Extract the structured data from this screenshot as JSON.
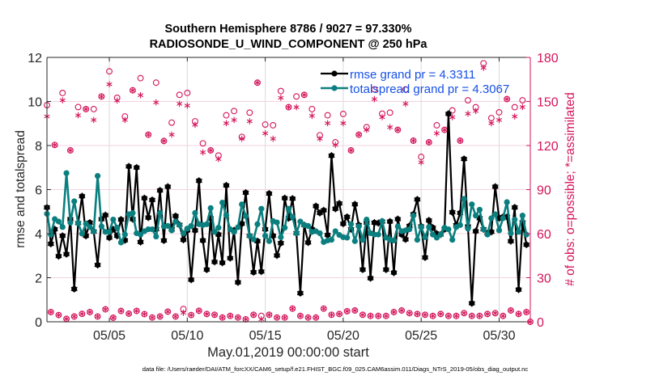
{
  "chart_data": {
    "type": "line",
    "title": "Southern Hemisphere 8786 / 9027 = 97.330%",
    "subtitle": "RADIOSONDE_U_WIND_COMPONENT @ 250 hPa",
    "xlabel": "May.01,2019 00:00:00 start",
    "ylabel": "rmse and totalspread",
    "y2label": "# of obs: o=possible; *=assimilated",
    "x_unit": "days since May.01,2019 00:00:00",
    "x_step_days": 0.25,
    "xlim": [
      0,
      31
    ],
    "ylim": [
      0,
      12
    ],
    "y2lim": [
      0,
      180
    ],
    "grid": true,
    "xticks": [
      {
        "value": 4,
        "label": "05/05"
      },
      {
        "value": 9,
        "label": "05/10"
      },
      {
        "value": 14,
        "label": "05/15"
      },
      {
        "value": 19,
        "label": "05/20"
      },
      {
        "value": 24,
        "label": "05/25"
      },
      {
        "value": 29,
        "label": "05/30"
      }
    ],
    "yticks": [
      0,
      2,
      4,
      6,
      8,
      10,
      12
    ],
    "y2ticks": [
      0,
      30,
      60,
      90,
      120,
      150,
      180
    ],
    "legend": {
      "placement": "top-center",
      "entries": [
        {
          "series": "rmse",
          "label": "rmse grand pr = 4.3311"
        },
        {
          "series": "totalspread",
          "label": "totalspread grand pr = 4.3067"
        }
      ]
    },
    "series": [
      {
        "name": "rmse",
        "axis": "left",
        "color": "#000000",
        "marker": "filled-star",
        "values": [
          5.19,
          3.54,
          4.2,
          2.98,
          3.9,
          3.07,
          4.66,
          1.49,
          4.48,
          5.7,
          3.9,
          4.5,
          4.1,
          2.58,
          4.66,
          4.84,
          3.82,
          4.2,
          3.9,
          4.64,
          3.7,
          7.05,
          4.66,
          7.0,
          3.62,
          5.61,
          4.73,
          5.53,
          4.2,
          5.96,
          3.69,
          6.13,
          4.2,
          4.8,
          4.4,
          3.72,
          4.15,
          1.91,
          4.15,
          6.4,
          3.69,
          2.37,
          4.7,
          2.72,
          3.96,
          2.68,
          6.19,
          2.89,
          4.15,
          1.79,
          4.45,
          5.86,
          3.9,
          2.25,
          3.66,
          2.28,
          4.2,
          5.82,
          3.9,
          3.01,
          3.57,
          5.61,
          4.7,
          5.59,
          4.02,
          1.3,
          4.39,
          3.6,
          4.2,
          5.25,
          4.94,
          5.06,
          3.94,
          7.54,
          5.13,
          5.37,
          4.45,
          4.76,
          4.2,
          5.33,
          4.39,
          2.37,
          4.5,
          1.98,
          4.5,
          4.48,
          4.55,
          2.37,
          4.55,
          2.23,
          4.66,
          3.96,
          3.74,
          4.35,
          4.88,
          5.55,
          4.33,
          2.92,
          4.6,
          4.27,
          4.0,
          3.96,
          4.2,
          9.44,
          4.97,
          4.39,
          4.94,
          7.39,
          4.33,
          0.84,
          4.11,
          4.7,
          4.2,
          4.02,
          4.08,
          6.13,
          4.7,
          4.76,
          4.76,
          3.66,
          5.19,
          1.46,
          4.51,
          3.5,
          null
        ]
      },
      {
        "name": "totalspread",
        "axis": "left",
        "color": "#0b7f7f",
        "marker": "filled-circle",
        "values": [
          4.9,
          3.96,
          4.66,
          4.55,
          4.3,
          6.75,
          4.5,
          5.47,
          4.48,
          4.0,
          4.45,
          4.3,
          4.1,
          6.62,
          4.33,
          4.08,
          4.08,
          4.64,
          4.27,
          3.6,
          3.96,
          4.88,
          4.94,
          4.02,
          3.96,
          4.11,
          4.2,
          4.2,
          3.87,
          4.94,
          4.33,
          4.35,
          4.15,
          4.55,
          4.39,
          4.02,
          4.23,
          4.35,
          4.94,
          4.43,
          4.39,
          4.43,
          5.16,
          4.08,
          4.27,
          5.41,
          4.84,
          4.2,
          4.08,
          4.29,
          5.33,
          4.8,
          3.9,
          3.74,
          4.43,
          5.13,
          3.9,
          3.66,
          4.57,
          4.51,
          3.84,
          4.27,
          5.13,
          4.76,
          4.02,
          4.55,
          4.39,
          4.35,
          4.08,
          4.11,
          4.02,
          3.62,
          3.69,
          3.72,
          4.11,
          3.94,
          3.84,
          3.82,
          4.43,
          3.66,
          4.33,
          3.72,
          4.64,
          4.02,
          3.96,
          3.96,
          4.57,
          3.82,
          3.72,
          3.69,
          4.33,
          4.11,
          4.15,
          4.2,
          4.82,
          3.72,
          4.3,
          3.84,
          4.3,
          3.96,
          3.82,
          3.96,
          4.27,
          4.2,
          3.72,
          4.3,
          4.39,
          5.58,
          4.23,
          5.33,
          4.82,
          5.09,
          4.2,
          3.96,
          4.7,
          4.88,
          4.15,
          4.7,
          5.43,
          4.02,
          4.64,
          4.08,
          4.82,
          3.96,
          null
        ]
      },
      {
        "name": "obs possible",
        "axis": "right",
        "color": "#d4145a",
        "marker": "o",
        "values": [
          147.5,
          6.6,
          120.4,
          4.6,
          155.8,
          2.0,
          116.7,
          3.6,
          146.2,
          5.4,
          144.8,
          6.6,
          144.8,
          3.6,
          153.4,
          8.5,
          170.5,
          2.8,
          152.5,
          7.4,
          139.8,
          5.5,
          157.6,
          7.4,
          165.9,
          5.2,
          127.4,
          2.9,
          162.8,
          3.6,
          123.1,
          6.9,
          135.6,
          3.6,
          154.5,
          8.7,
          155.8,
          4.6,
          136.5,
          7.5,
          121.5,
          5.3,
          116.7,
          4.8,
          113.2,
          2.9,
          140.6,
          4.0,
          143.5,
          2.9,
          125.9,
          1.7,
          142.4,
          4.8,
          162.8,
          4.0,
          134.3,
          4.8,
          133.8,
          2.9,
          157.1,
          2.9,
          146.1,
          9.0,
          153.4,
          4.0,
          154.5,
          2.9,
          144.8,
          2.9,
          127.0,
          9.0,
          140.6,
          4.8,
          122.2,
          5.3,
          141.5,
          7.2,
          116.7,
          7.7,
          127.4,
          4.8,
          132.5,
          4.0,
          158.2,
          4.0,
          141.7,
          4.0,
          142.4,
          6.6,
          130.7,
          7.7,
          158.2,
          5.9,
          123.3,
          5.3,
          112.3,
          4.8,
          122.2,
          4.0,
          133.8,
          5.3,
          130.7,
          4.0,
          143.9,
          4.0,
          123.3,
          5.9,
          150.8,
          4.0,
          146.1,
          4.0,
          176.0,
          5.3,
          138.7,
          5.9,
          142.6,
          4.0,
          151.6,
          7.7,
          146.1,
          5.3,
          150.8,
          6.6,
          0
        ]
      },
      {
        "name": "obs assimilated",
        "axis": "right",
        "color": "#d4145a",
        "marker": "*",
        "values": [
          139.8,
          6.6,
          120.4,
          4.6,
          150.8,
          2.0,
          116.7,
          3.6,
          140.6,
          5.4,
          144.8,
          6.6,
          137.4,
          3.6,
          153.4,
          8.5,
          161.7,
          2.8,
          150.6,
          7.4,
          137.4,
          5.5,
          157.6,
          7.4,
          154.3,
          5.2,
          127.4,
          2.9,
          149.4,
          3.6,
          123.1,
          6.9,
          127.4,
          3.6,
          148.4,
          6.1,
          147.2,
          4.6,
          134.1,
          7.5,
          115.4,
          5.3,
          116.7,
          4.8,
          110.8,
          2.9,
          135.2,
          4.0,
          137.4,
          2.9,
          124.6,
          1.7,
          136.5,
          4.8,
          162.8,
          1.7,
          128.3,
          4.8,
          124.6,
          2.9,
          152.5,
          2.9,
          146.1,
          9.0,
          146.1,
          4.0,
          154.5,
          2.9,
          140.2,
          2.9,
          124.6,
          9.0,
          135.2,
          4.8,
          120.4,
          5.3,
          135.2,
          7.2,
          116.7,
          7.7,
          127.4,
          4.8,
          130.7,
          4.0,
          151.6,
          4.0,
          139.3,
          4.0,
          132.5,
          6.6,
          130.7,
          7.7,
          148.4,
          5.9,
          123.3,
          5.3,
          108.6,
          4.8,
          122.2,
          4.0,
          128.3,
          5.3,
          130.7,
          4.0,
          139.3,
          4.0,
          123.3,
          5.9,
          141.7,
          4.0,
          143.5,
          4.0,
          172.9,
          5.3,
          135.2,
          5.9,
          137.4,
          4.0,
          151.6,
          7.7,
          139.8,
          5.3,
          146.2,
          6.6,
          0
        ]
      }
    ]
  },
  "footer": "data file: /Users/raeder/DAI/ATM_forcXX/CAM6_setup/f.e21.FHIST_BGC.f09_025.CAM6assim.011/Diags_NTrS_2019-05/obs_diag_output.nc",
  "colors": {
    "left_axis": "#262626",
    "right_axis": "#d4145a",
    "legend_text": "#1650e6",
    "vertical_grid": "#dadada",
    "horizontal_grid": "#f4d3df"
  }
}
